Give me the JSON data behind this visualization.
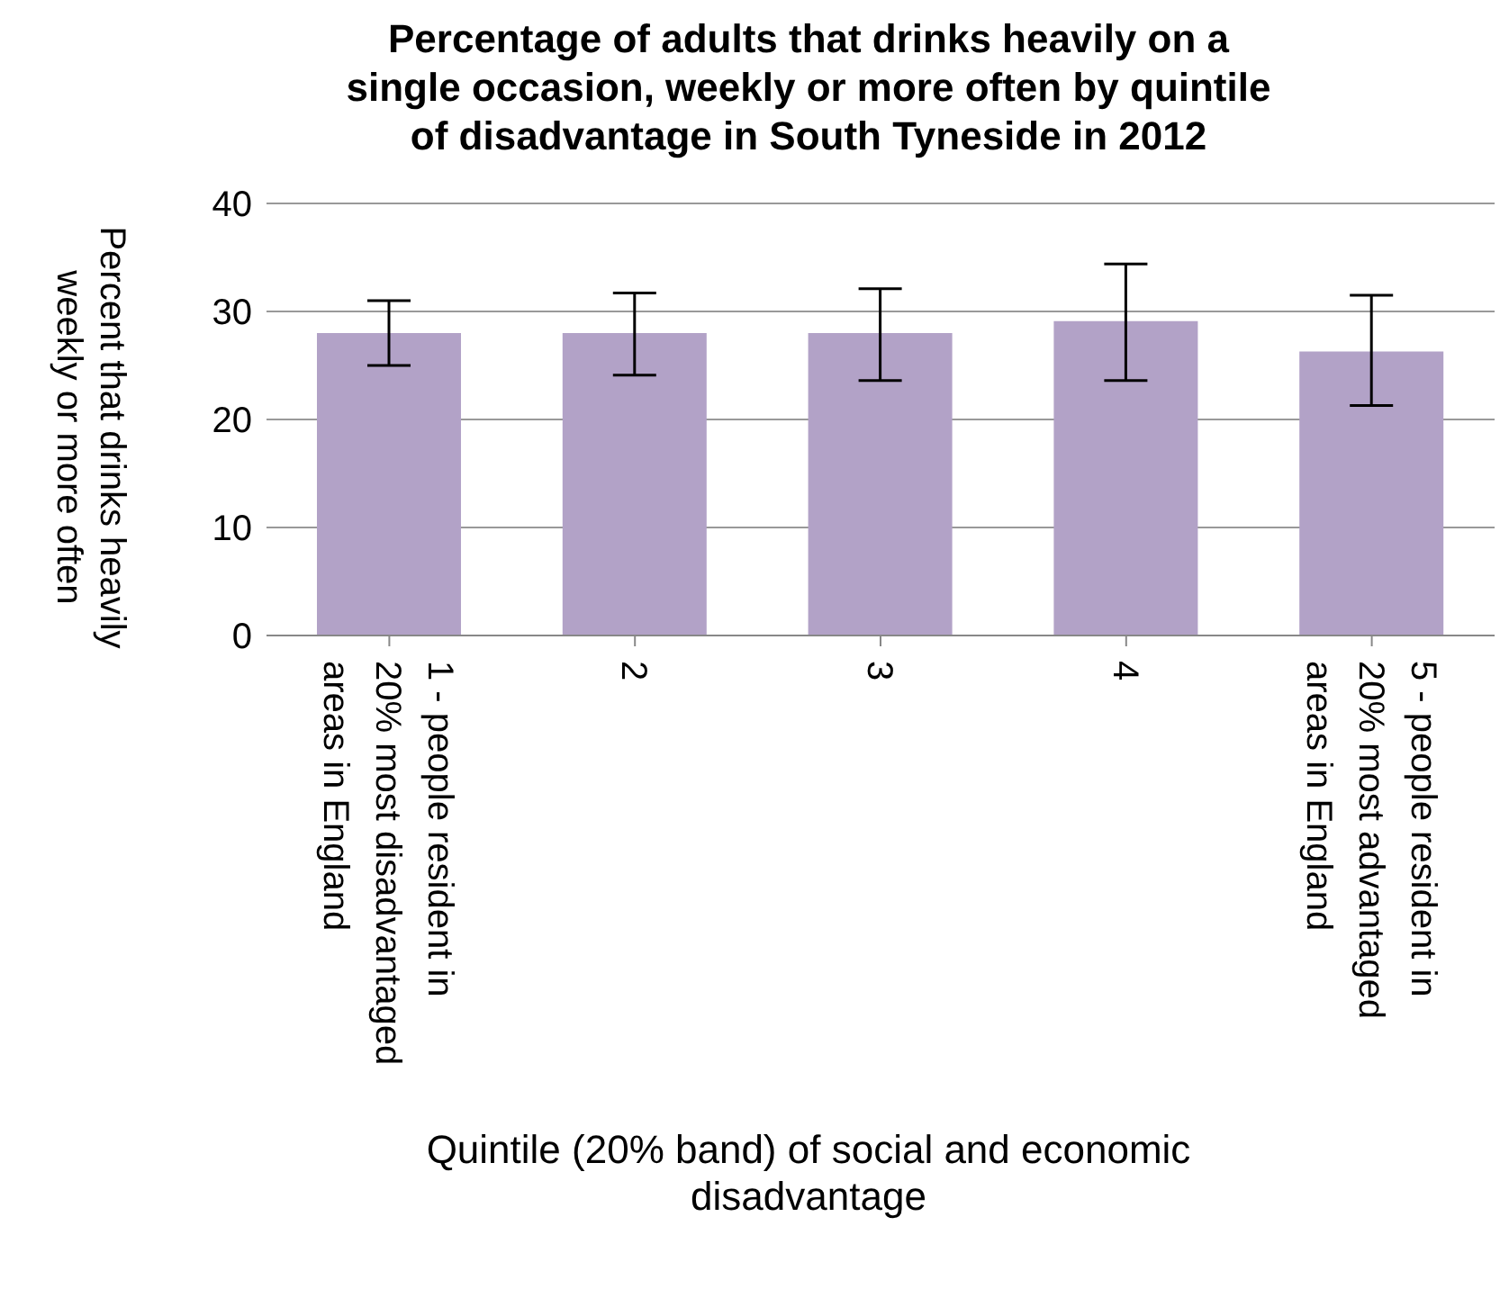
{
  "chart_data": {
    "type": "bar",
    "title": "Percentage of adults that drinks heavily on a single occasion, weekly or more often by quintile of disadvantage in South Tyneside in 2012",
    "xlabel": "Quintile (20% band) of social and economic disadvantage",
    "ylabel": "Percent that drinks heavily weekly or more often",
    "categories": [
      "1 - people resident in 20% most disadvantaged areas in England",
      "2",
      "3",
      "4",
      "5 - people resident in 20% most advantaged areas in England"
    ],
    "values": [
      28.0,
      28.0,
      28.0,
      29.1,
      26.3
    ],
    "errors": [
      [
        25.0,
        31.0
      ],
      [
        24.1,
        31.7
      ],
      [
        23.6,
        32.1
      ],
      [
        23.6,
        34.4
      ],
      [
        21.3,
        31.5
      ]
    ],
    "color": "#b2a2c7",
    "ylim": [
      0,
      40
    ],
    "yticks": [
      0,
      10,
      20,
      30,
      40
    ],
    "grid": "y",
    "legend": false
  }
}
